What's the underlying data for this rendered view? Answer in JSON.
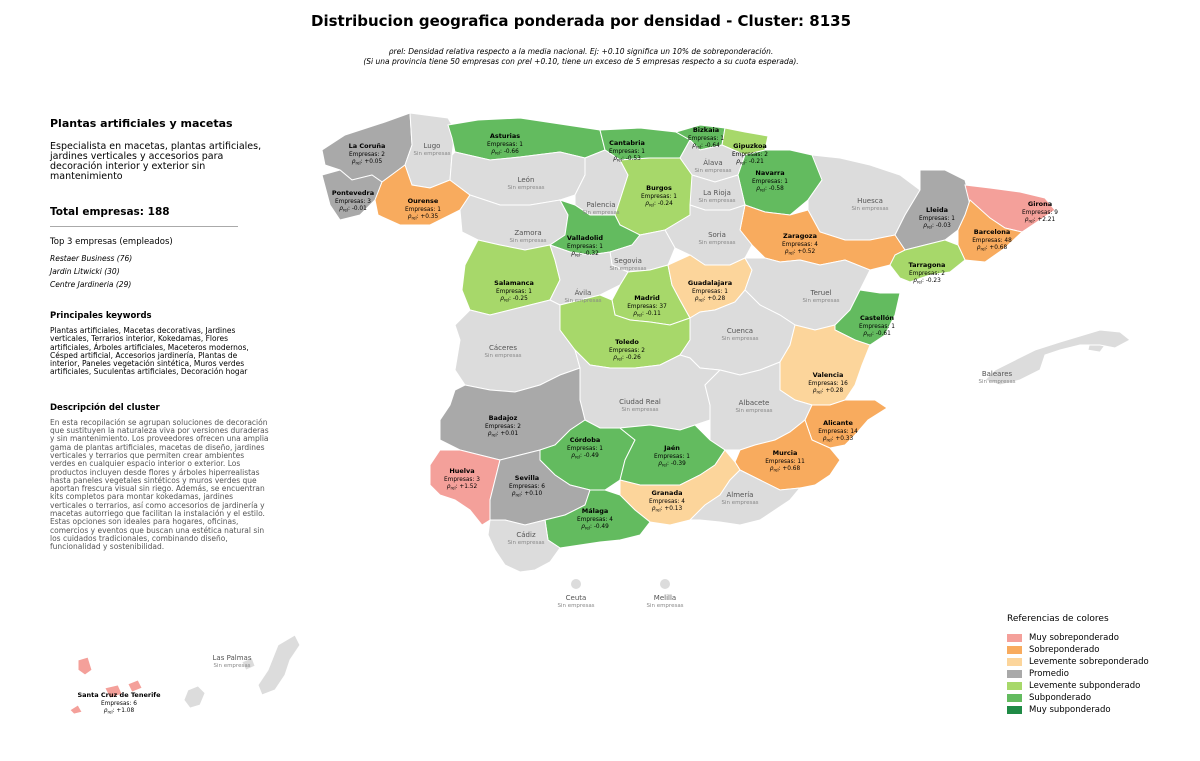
{
  "title": "Distribucion geografica ponderada por densidad - Cluster: 8135",
  "subtitle_line1": "ρrel: Densidad relativa respecto a la media nacional. Ej: +0.10 significa un 10% de sobreponderación.",
  "subtitle_line2": "(Si una provincia tiene 50 empresas con ρrel +0.10, tiene un exceso de 5 empresas respecto a su cuota esperada).",
  "sidebar": {
    "heading": "Plantas artificiales y macetas",
    "description": "Especialista en macetas, plantas artificiales, jardines verticales y accesorios para decoración interior y exterior sin mantenimiento",
    "total": "Total empresas: 188",
    "top3_title": "Top 3 empresas (empleados)",
    "top3": [
      "Restaer Business (76)",
      "Jardin Litwicki (30)",
      "Centre Jardineria (29)"
    ],
    "keywords_title": "Principales keywords",
    "keywords": "Plantas artificiales, Macetas decorativas, Jardines verticales, Terrarios interior, Kokedamas, Flores artificiales, Árboles artificiales, Maceteros modernos, Césped artificial, Accesorios jardinería, Plantas de interior, Paneles vegetación sintética, Muros verdes artificiales, Suculentas artificiales, Decoración hogar",
    "cluster_title": "Descripción del cluster",
    "cluster_desc": "En esta recopilación se agrupan soluciones de decoración que sustituyen la naturaleza viva por versiones duraderas y sin mantenimiento. Los proveedores ofrecen una amplia gama de plantas artificiales, macetas de diseño, jardines verticales y terrarios que permiten crear ambientes verdes en cualquier espacio interior o exterior. Los productos incluyen desde flores y árboles hiperrealistas hasta paneles vegetales sintéticos y muros verdes que aportan frescura visual sin riego. Además, se encuentran kits completos para montar kokedamas, jardines verticales o terrarios, así como accesorios de jardinería y macetas autorriego que facilitan la instalación y el estilo. Estas opciones son ideales para hogares, oficinas, comercios y eventos que buscan una estética natural sin los cuidados tradicionales, combinando diseño, funcionalidad y sostenibilidad."
  },
  "colors": {
    "muy_sobre": "#f4a09a",
    "sobre": "#f8ab5e",
    "leve_sobre": "#fcd59b",
    "promedio": "#a9a9a9",
    "leve_sub": "#a7d86a",
    "sub": "#63bb5f",
    "muy_sub": "#1f8a45",
    "sin": "#dcdcdc"
  },
  "legend": {
    "title": "Referencias de colores",
    "items": [
      {
        "label": "Muy sobreponderado",
        "cat": "muy_sobre"
      },
      {
        "label": "Sobreponderado",
        "cat": "sobre"
      },
      {
        "label": "Levemente sobreponderado",
        "cat": "leve_sobre"
      },
      {
        "label": "Promedio",
        "cat": "promedio"
      },
      {
        "label": "Levemente subponderado",
        "cat": "leve_sub"
      },
      {
        "label": "Subponderado",
        "cat": "sub"
      },
      {
        "label": "Muy subponderado",
        "cat": "muy_sub"
      }
    ]
  },
  "provinces": [
    {
      "name": "La Coruña",
      "cat": "promedio",
      "empresas": "Empresas: 2",
      "rho": "+0.05"
    },
    {
      "name": "Lugo",
      "cat": "sin",
      "empresas": "Sin empresas"
    },
    {
      "name": "Asturias",
      "cat": "sub",
      "empresas": "Empresas: 1",
      "rho": "-0.66"
    },
    {
      "name": "Cantabria",
      "cat": "sub",
      "empresas": "Empresas: 1",
      "rho": "-0.53"
    },
    {
      "name": "Bizkaia",
      "cat": "sub",
      "empresas": "Empresas: 1",
      "rho": "-0.64"
    },
    {
      "name": "Gipuzkoa",
      "cat": "leve_sub",
      "empresas": "Empresas: 2",
      "rho": "-0.21"
    },
    {
      "name": "Álava",
      "cat": "sin",
      "empresas": "Sin empresas"
    },
    {
      "name": "Navarra",
      "cat": "sub",
      "empresas": "Empresas: 1",
      "rho": "-0.58"
    },
    {
      "name": "Pontevedra",
      "cat": "promedio",
      "empresas": "Empresas: 3",
      "rho": "-0.01"
    },
    {
      "name": "Ourense",
      "cat": "sobre",
      "empresas": "Empresas: 1",
      "rho": "+0.35"
    },
    {
      "name": "León",
      "cat": "sin",
      "empresas": "Sin empresas"
    },
    {
      "name": "Palencia",
      "cat": "sin",
      "empresas": "Sin empresas"
    },
    {
      "name": "Burgos",
      "cat": "leve_sub",
      "empresas": "Empresas: 1",
      "rho": "-0.24"
    },
    {
      "name": "La Rioja",
      "cat": "sin",
      "empresas": "Sin empresas"
    },
    {
      "name": "Huesca",
      "cat": "sin",
      "empresas": "Sin empresas"
    },
    {
      "name": "Lleida",
      "cat": "promedio",
      "empresas": "Empresas: 1",
      "rho": "-0.03"
    },
    {
      "name": "Girona",
      "cat": "muy_sobre",
      "empresas": "Empresas: 9",
      "rho": "+2.21"
    },
    {
      "name": "Barcelona",
      "cat": "sobre",
      "empresas": "Empresas: 48",
      "rho": "+0.68"
    },
    {
      "name": "Zaragoza",
      "cat": "sobre",
      "empresas": "Empresas: 4",
      "rho": "+0.52"
    },
    {
      "name": "Tarragona",
      "cat": "leve_sub",
      "empresas": "Empresas: 2",
      "rho": "-0.23"
    },
    {
      "name": "Zamora",
      "cat": "sin",
      "empresas": "Sin empresas"
    },
    {
      "name": "Valladolid",
      "cat": "sub",
      "empresas": "Empresas: 1",
      "rho": "-0.32"
    },
    {
      "name": "Soria",
      "cat": "sin",
      "empresas": "Sin empresas"
    },
    {
      "name": "Segovia",
      "cat": "sin",
      "empresas": "Sin empresas"
    },
    {
      "name": "Salamanca",
      "cat": "leve_sub",
      "empresas": "Empresas: 1",
      "rho": "-0.25"
    },
    {
      "name": "Ávila",
      "cat": "sin",
      "empresas": "Sin empresas"
    },
    {
      "name": "Madrid",
      "cat": "leve_sub",
      "empresas": "Empresas: 37",
      "rho": "-0.11"
    },
    {
      "name": "Guadalajara",
      "cat": "leve_sobre",
      "empresas": "Empresas: 1",
      "rho": "+0.28"
    },
    {
      "name": "Teruel",
      "cat": "sin",
      "empresas": "Sin empresas"
    },
    {
      "name": "Castellón",
      "cat": "sub",
      "empresas": "Empresas: 1",
      "rho": "-0.61"
    },
    {
      "name": "Cáceres",
      "cat": "sin",
      "empresas": "Sin empresas"
    },
    {
      "name": "Toledo",
      "cat": "leve_sub",
      "empresas": "Empresas: 2",
      "rho": "-0.26"
    },
    {
      "name": "Cuenca",
      "cat": "sin",
      "empresas": "Sin empresas"
    },
    {
      "name": "Valencia",
      "cat": "leve_sobre",
      "empresas": "Empresas: 16",
      "rho": "+0.28"
    },
    {
      "name": "Baleares",
      "cat": "sin",
      "empresas": "Sin empresas"
    },
    {
      "name": "Ciudad Real",
      "cat": "sin",
      "empresas": "Sin empresas"
    },
    {
      "name": "Albacete",
      "cat": "sin",
      "empresas": "Sin empresas"
    },
    {
      "name": "Badajoz",
      "cat": "promedio",
      "empresas": "Empresas: 2",
      "rho": "+0.01"
    },
    {
      "name": "Alicante",
      "cat": "sobre",
      "empresas": "Empresas: 14",
      "rho": "+0.33"
    },
    {
      "name": "Córdoba",
      "cat": "sub",
      "empresas": "Empresas: 1",
      "rho": "-0.49"
    },
    {
      "name": "Jaén",
      "cat": "sub",
      "empresas": "Empresas: 1",
      "rho": "-0.39"
    },
    {
      "name": "Murcia",
      "cat": "sobre",
      "empresas": "Empresas: 11",
      "rho": "+0.68"
    },
    {
      "name": "Huelva",
      "cat": "muy_sobre",
      "empresas": "Empresas: 3",
      "rho": "+1.52"
    },
    {
      "name": "Sevilla",
      "cat": "promedio",
      "empresas": "Empresas: 6",
      "rho": "+0.10"
    },
    {
      "name": "Granada",
      "cat": "leve_sobre",
      "empresas": "Empresas: 4",
      "rho": "+0.13"
    },
    {
      "name": "Almería",
      "cat": "sin",
      "empresas": "Sin empresas"
    },
    {
      "name": "Málaga",
      "cat": "sub",
      "empresas": "Empresas: 4",
      "rho": "-0.49"
    },
    {
      "name": "Cádiz",
      "cat": "sin",
      "empresas": "Sin empresas"
    },
    {
      "name": "Ceuta",
      "cat": "sin",
      "empresas": "Sin empresas"
    },
    {
      "name": "Melilla",
      "cat": "sin",
      "empresas": "Sin empresas"
    },
    {
      "name": "Las Palmas",
      "cat": "sin",
      "empresas": "Sin empresas"
    },
    {
      "name": "Santa Cruz de Tenerife",
      "cat": "muy_sobre",
      "empresas": "Empresas: 6",
      "rho": "+1.08"
    }
  ]
}
